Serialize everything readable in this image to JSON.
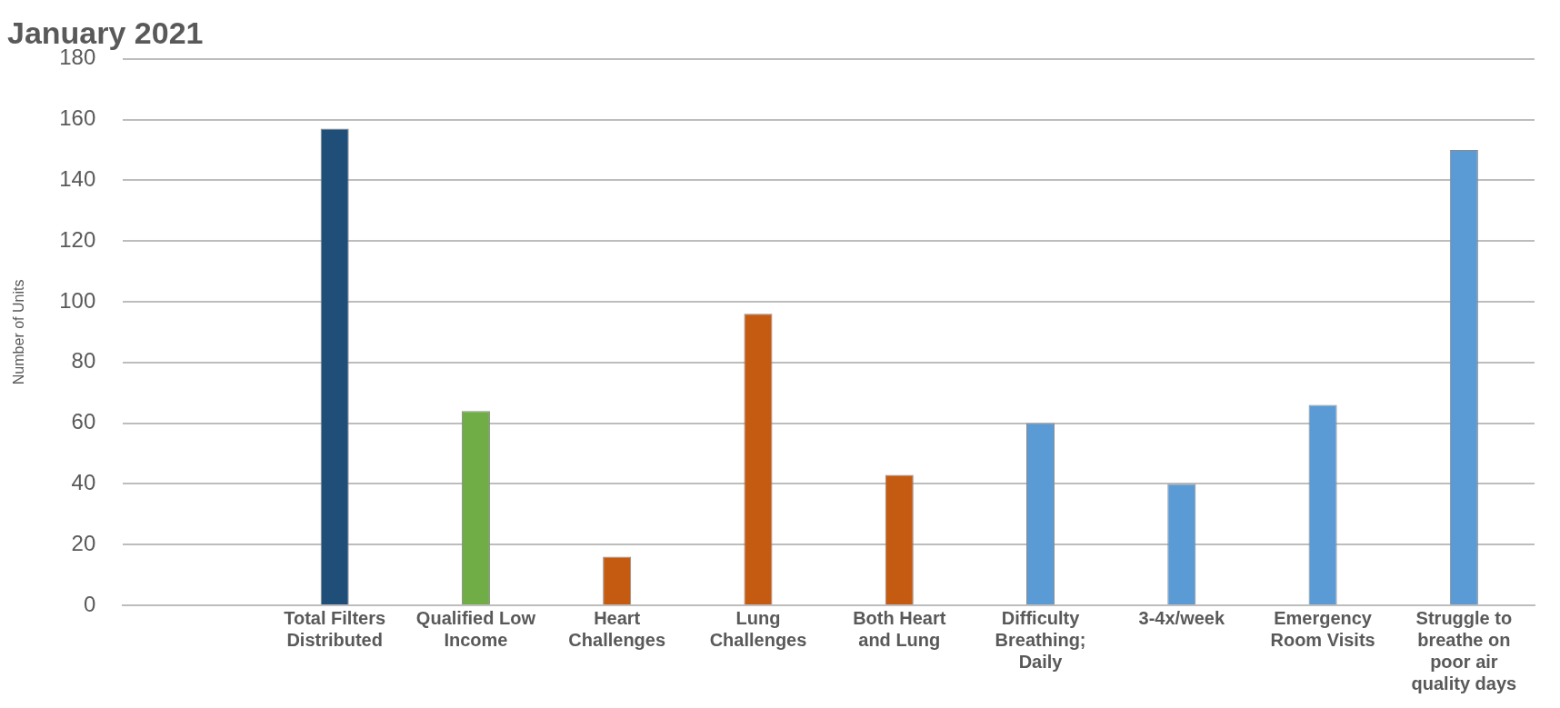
{
  "chart_data": {
    "type": "bar",
    "title": "January 2021",
    "ylabel": "Number of Units",
    "categories": [
      null,
      "Total Filters Distributed",
      "Qualified Low Income",
      "Heart Challenges",
      "Lung Challenges",
      "Both Heart and Lung",
      "Difficulty Breathing; Daily",
      "3-4x/week",
      "Emergency Room Visits",
      "Struggle to breathe on poor air quality days"
    ],
    "values": [
      null,
      157,
      64,
      16,
      96,
      43,
      60,
      40,
      66,
      150
    ],
    "colors": [
      "#1f4e79",
      "#1f4e79",
      "#70ad47",
      "#c55a11",
      "#c55a11",
      "#c55a11",
      "#5b9bd5",
      "#5b9bd5",
      "#5b9bd5",
      "#5b9bd5"
    ],
    "ylim": [
      0,
      180
    ],
    "yticks": [
      0,
      20,
      40,
      60,
      80,
      100,
      120,
      140,
      160,
      180
    ],
    "grid": "y",
    "legend": false
  }
}
